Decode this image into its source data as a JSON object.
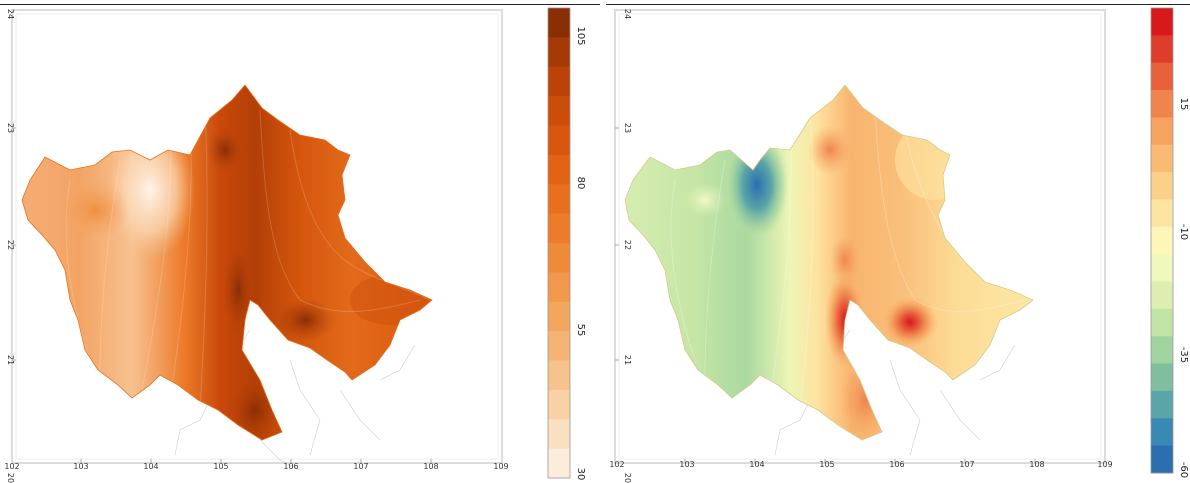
{
  "maps": [
    {
      "id": "left",
      "x_ticks": [
        "102",
        "103",
        "104",
        "105",
        "106",
        "107",
        "108",
        "109"
      ],
      "y_ticks": [
        "24",
        "23",
        "22",
        "21",
        "20"
      ],
      "colorbar": {
        "labels": [
          "105",
          "80",
          "55",
          "30"
        ],
        "colors": [
          "#8a2e05",
          "#a53a06",
          "#bb4307",
          "#cc4d09",
          "#d8560d",
          "#e26314",
          "#e8701d",
          "#ec7c2a",
          "#ef8a39",
          "#f1984b",
          "#f3a65e",
          "#f5b475",
          "#f7c38d",
          "#f9d1a6",
          "#fbdfc1",
          "#fcecdb"
        ]
      },
      "palette": {
        "dark": "#a13a06",
        "mid": "#d4570e",
        "light": "#f0a060",
        "pale": "#fde6cf"
      }
    },
    {
      "id": "right",
      "x_ticks": [
        "102",
        "103",
        "104",
        "105",
        "106",
        "107",
        "108",
        "109"
      ],
      "y_ticks": [
        "24",
        "23",
        "22",
        "21",
        "20"
      ],
      "colorbar": {
        "labels": [
          "15",
          "-10",
          "-35",
          "-60"
        ],
        "colors": [
          "#d7191c",
          "#de3d2c",
          "#e8613d",
          "#f0844f",
          "#f6a35f",
          "#f9ba74",
          "#fbd08a",
          "#fde4a1",
          "#fef5b8",
          "#f1f8bb",
          "#dcefb1",
          "#c2e3a6",
          "#a1d39f",
          "#7fbf9f",
          "#5aa5a8",
          "#3a88b4",
          "#2b6fb0"
        ]
      },
      "palette": {
        "warm": "#f4a25a",
        "hot": "#e04030",
        "cool": "#c9e3a2",
        "cold": "#3f86b3",
        "neutral": "#fdeaa5"
      }
    }
  ]
}
